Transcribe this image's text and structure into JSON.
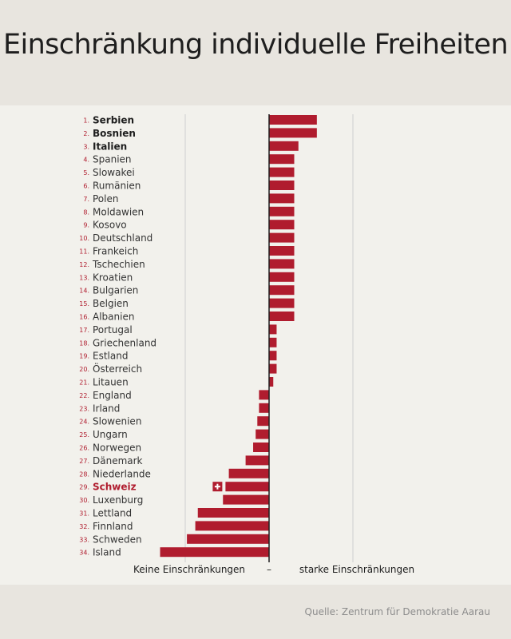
{
  "title": "Einschränkung individuelle Freiheiten",
  "source": "Quelle: Zentrum für Demokratie Aarau",
  "colors": {
    "bar": "#b01c2e",
    "accent": "#b01c2e",
    "text": "#1e1e1e",
    "grid": "#cfcfcf"
  },
  "chart_data": {
    "type": "bar",
    "orientation": "horizontal",
    "title": "Einschränkung individuelle Freiheiten",
    "xlabel_left": "Keine Einschränkungen",
    "xlabel_center": "–",
    "xlabel_right": "starke Einschränkungen",
    "xlim": [
      -1.3,
      1.0
    ],
    "grid": true,
    "highlight": "Schweiz",
    "bold": [
      "Serbien",
      "Bosnien",
      "Italien"
    ],
    "ranks": [
      "1.",
      "2.",
      "3.",
      "4.",
      "5.",
      "6.",
      "7.",
      "8.",
      "9.",
      "10.",
      "11.",
      "12.",
      "13.",
      "14.",
      "15.",
      "16.",
      "17.",
      "18.",
      "19.",
      "20.",
      "21.",
      "22.",
      "23.",
      "24.",
      "25.",
      "26.",
      "27.",
      "28.",
      "29.",
      "30.",
      "31.",
      "32.",
      "33.",
      "34."
    ],
    "categories": [
      "Serbien",
      "Bosnien",
      "Italien",
      "Spanien",
      "Slowakei",
      "Rumänien",
      "Polen",
      "Moldawien",
      "Kosovo",
      "Deutschland",
      "Frankeich",
      "Tschechien",
      "Kroatien",
      "Bulgarien",
      "Belgien",
      "Albanien",
      "Portugal",
      "Griechenland",
      "Estland",
      "Österreich",
      "Litauen",
      "England",
      "Irland",
      "Slowenien",
      "Ungarn",
      "Norwegen",
      "Dänemark",
      "Niederlande",
      "Schweiz",
      "Luxenburg",
      "Lettland",
      "Finnland",
      "Schweden",
      "Island"
    ],
    "values": [
      0.57,
      0.57,
      0.35,
      0.3,
      0.3,
      0.3,
      0.3,
      0.3,
      0.3,
      0.3,
      0.3,
      0.3,
      0.3,
      0.3,
      0.3,
      0.3,
      0.09,
      0.09,
      0.09,
      0.09,
      0.05,
      -0.12,
      -0.12,
      -0.14,
      -0.16,
      -0.19,
      -0.28,
      -0.48,
      -0.52,
      -0.55,
      -0.85,
      -0.88,
      -0.98,
      -1.3
    ]
  }
}
